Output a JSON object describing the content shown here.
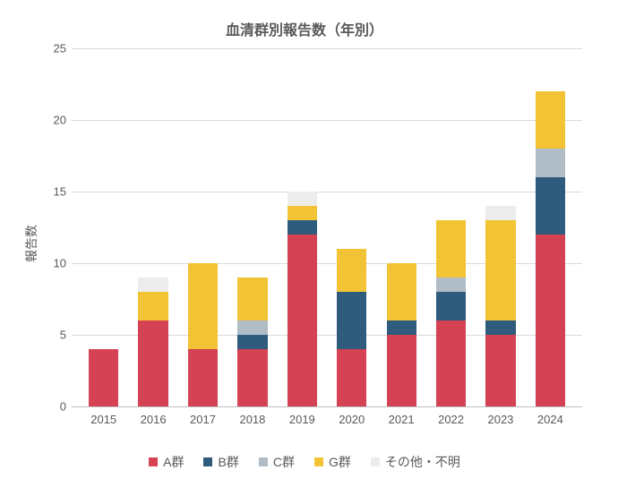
{
  "chart": {
    "type": "stacked-bar",
    "title": "血清群別報告数（年別）",
    "title_fontsize": 16,
    "ylabel": "報告数",
    "label_fontsize": 14,
    "tick_fontsize": 13,
    "legend_fontsize": 14,
    "background_color": "#ffffff",
    "grid_color": "#d9d9d9",
    "axis_color": "#bfbfbf",
    "text_color": "#595959",
    "ylim": [
      0,
      25
    ],
    "ytick_step": 5,
    "yticks": [
      0,
      5,
      10,
      15,
      20,
      25
    ],
    "bar_width": 0.6,
    "categories": [
      "2015",
      "2016",
      "2017",
      "2018",
      "2019",
      "2020",
      "2021",
      "2022",
      "2023",
      "2024"
    ],
    "series": [
      {
        "name": "A群",
        "color": "#d44254",
        "values": [
          4,
          6,
          4,
          4,
          12,
          4,
          5,
          6,
          5,
          12
        ]
      },
      {
        "name": "B群",
        "color": "#2f5b7c",
        "values": [
          0,
          0,
          0,
          1,
          1,
          4,
          1,
          2,
          1,
          4
        ]
      },
      {
        "name": "C群",
        "color": "#b0bdc6",
        "values": [
          0,
          0,
          0,
          1,
          0,
          0,
          0,
          1,
          0,
          2
        ]
      },
      {
        "name": "G群",
        "color": "#f2c335",
        "values": [
          0,
          2,
          6,
          3,
          1,
          3,
          4,
          4,
          7,
          4
        ]
      },
      {
        "name": "その他・不明",
        "color": "#ececec",
        "values": [
          0,
          1,
          0,
          0,
          1,
          0,
          0,
          0,
          1,
          0
        ]
      }
    ]
  }
}
